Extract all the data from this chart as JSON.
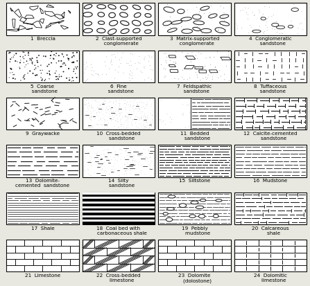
{
  "ncols": 4,
  "nrows": 6,
  "labels": [
    "1  Breccia",
    "2  Clast-supported\n   conglomerate",
    "3  Matrix-supported\n   conglomerate",
    "4  Conglomeratic\n   sandstone",
    "5  Coarse\n   sandstone",
    "6  Fine\n   sandstone",
    "7  Feldspathic\n   sandstone",
    "8  Tuffaceous\n   sandstone",
    "9  Graywacke",
    "10  Cross-bedded\n    sandstone",
    "11  Bedded\n    sandstone",
    "12  Calcite-cemented\n    sandstone",
    "13  Dolomite-\ncemented  sandstone",
    "14  Silty\n    sandstone",
    "15  Siltstone",
    "16  Mudstone",
    "17  Shale",
    "18  Coal bed with\n    carbonaceous shale",
    "19  Pebbly\n    mudstone",
    "20  Calcareous\n    shale",
    "21  Limestone",
    "22  Cross-bedded\n    limestone",
    "23  Dolomite\n    (dolostone)",
    "24  Dolomitic\n    limestone"
  ],
  "fig_width": 4.47,
  "fig_height": 4.14,
  "bg_color": "#e8e8e0"
}
